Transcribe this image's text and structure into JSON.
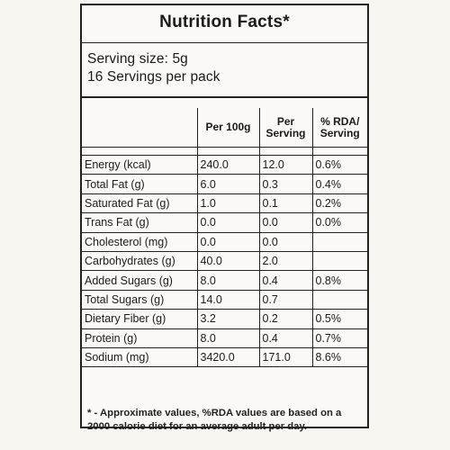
{
  "label": {
    "title": "Nutrition Facts*",
    "serving_size": "Serving size: 5g",
    "servings_per_pack": "16 Servings per pack",
    "columns": {
      "nutrient": "",
      "per100g": "Per 100g",
      "per_serving": "Per Serving",
      "rda": "% RDA/ Serving"
    },
    "rows": [
      {
        "nutrient": "Energy (kcal)",
        "per100g": "240.0",
        "per_serving": "12.0",
        "rda": "0.6%"
      },
      {
        "nutrient": "Total Fat (g)",
        "per100g": "6.0",
        "per_serving": "0.3",
        "rda": "0.4%"
      },
      {
        "nutrient": "Saturated Fat (g)",
        "per100g": "1.0",
        "per_serving": "0.1",
        "rda": "0.2%"
      },
      {
        "nutrient": "Trans Fat (g)",
        "per100g": "0.0",
        "per_serving": "0.0",
        "rda": "0.0%"
      },
      {
        "nutrient": "Cholesterol (mg)",
        "per100g": "0.0",
        "per_serving": "0.0",
        "rda": ""
      },
      {
        "nutrient": "Carbohydrates (g)",
        "per100g": "40.0",
        "per_serving": "2.0",
        "rda": ""
      },
      {
        "nutrient": "Added Sugars (g)",
        "per100g": "8.0",
        "per_serving": "0.4",
        "rda": "0.8%"
      },
      {
        "nutrient": "Total Sugars (g)",
        "per100g": "14.0",
        "per_serving": "0.7",
        "rda": ""
      },
      {
        "nutrient": "Dietary Fiber (g)",
        "per100g": "3.2",
        "per_serving": "0.2",
        "rda": "0.5%"
      },
      {
        "nutrient": "Protein (g)",
        "per100g": "8.0",
        "per_serving": "0.4",
        "rda": "0.7%"
      },
      {
        "nutrient": "Sodium (mg)",
        "per100g": "3420.0",
        "per_serving": "171.0",
        "rda": "8.6%"
      }
    ],
    "footnote": "* - Approximate values, %RDA values are based on a 2000 calorie diet for an average adult per day."
  }
}
